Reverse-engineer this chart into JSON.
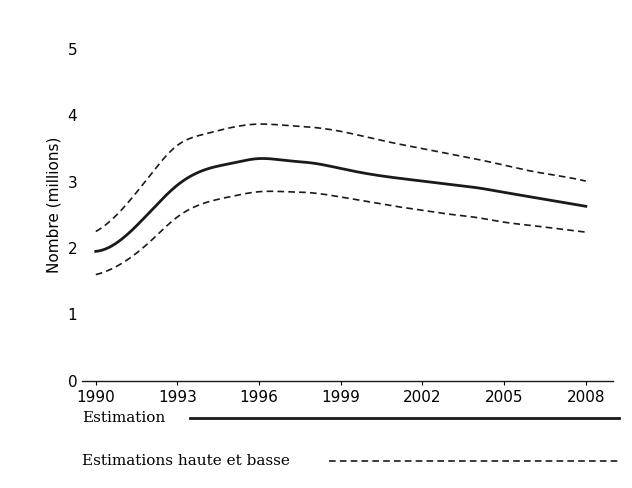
{
  "years": [
    1990,
    1991,
    1992,
    1993,
    1994,
    1995,
    1996,
    1997,
    1998,
    1999,
    2000,
    2001,
    2002,
    2003,
    2004,
    2005,
    2006,
    2007,
    2008
  ],
  "central": [
    1.95,
    2.15,
    2.55,
    2.95,
    3.18,
    3.28,
    3.35,
    3.32,
    3.28,
    3.2,
    3.12,
    3.06,
    3.01,
    2.96,
    2.91,
    2.84,
    2.77,
    2.7,
    2.63
  ],
  "upper": [
    2.25,
    2.6,
    3.1,
    3.55,
    3.72,
    3.82,
    3.87,
    3.85,
    3.82,
    3.76,
    3.67,
    3.58,
    3.5,
    3.42,
    3.34,
    3.25,
    3.16,
    3.09,
    3.01
  ],
  "lower": [
    1.6,
    1.78,
    2.1,
    2.47,
    2.68,
    2.78,
    2.85,
    2.85,
    2.83,
    2.77,
    2.7,
    2.63,
    2.57,
    2.51,
    2.46,
    2.39,
    2.34,
    2.29,
    2.24
  ],
  "yticks": [
    0,
    1,
    2,
    3,
    4,
    5
  ],
  "xticks": [
    1990,
    1993,
    1996,
    1999,
    2002,
    2005,
    2008
  ],
  "ylabel": "Nombre (millions)",
  "ylim": [
    0,
    5.3
  ],
  "xlim": [
    1989.5,
    2009.0
  ],
  "line_color": "#1a1a1a",
  "dash_color": "#1a1a1a",
  "legend_label_central": "Estimation",
  "legend_label_bounds": "Estimations haute et basse",
  "background_color": "#ffffff",
  "tick_fontsize": 11,
  "ylabel_fontsize": 11,
  "legend_fontsize": 11
}
